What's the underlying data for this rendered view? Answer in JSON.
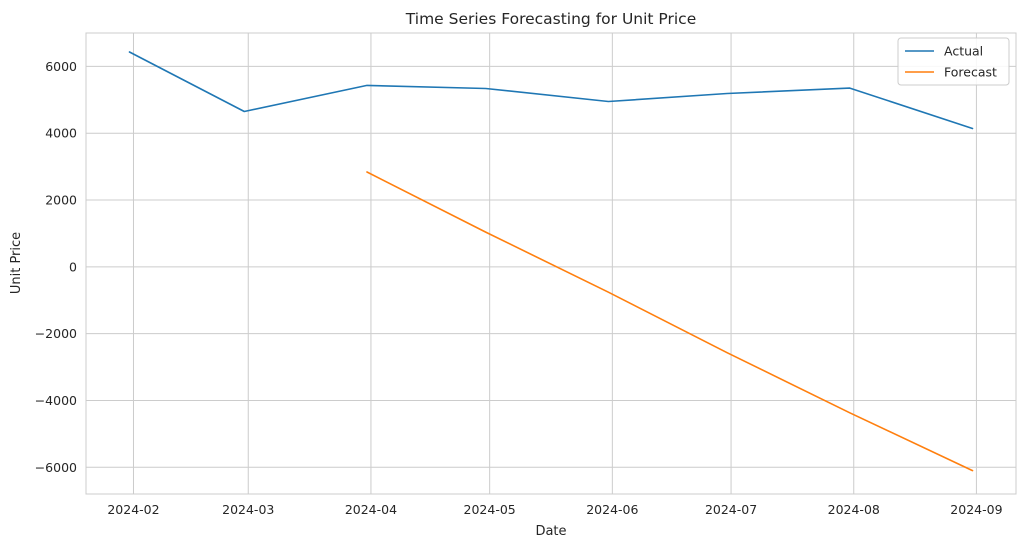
{
  "chart_data": {
    "type": "line",
    "title": "Time Series Forecasting for Unit Price",
    "xlabel": "Date",
    "ylabel": "Unit Price",
    "x_ticks": [
      "2024-02",
      "2024-03",
      "2024-04",
      "2024-05",
      "2024-06",
      "2024-07",
      "2024-08",
      "2024-09"
    ],
    "y_ticks": [
      6000,
      4000,
      2000,
      0,
      -2000,
      -4000,
      -6000
    ],
    "y_tick_labels": [
      "6000",
      "4000",
      "2000",
      "0",
      "−2000",
      "−4000",
      "−6000"
    ],
    "xlim": [
      "2024-01-20",
      "2024-09-11"
    ],
    "ylim": [
      -6800,
      7000
    ],
    "grid": true,
    "legend_position": "top-right",
    "series": [
      {
        "name": "Actual",
        "color": "#1f77b4",
        "x": [
          "2024-01-31",
          "2024-02-29",
          "2024-03-31",
          "2024-04-30",
          "2024-05-31",
          "2024-06-30",
          "2024-07-31",
          "2024-08-31"
        ],
        "values": [
          6430,
          4650,
          5430,
          5340,
          4950,
          5190,
          5350,
          4140
        ]
      },
      {
        "name": "Forecast",
        "color": "#ff7f0e",
        "x": [
          "2024-03-31",
          "2024-04-30",
          "2024-05-31",
          "2024-06-30",
          "2024-07-31",
          "2024-08-31"
        ],
        "values": [
          2840,
          1040,
          -760,
          -2570,
          -4370,
          -6100
        ]
      }
    ]
  }
}
